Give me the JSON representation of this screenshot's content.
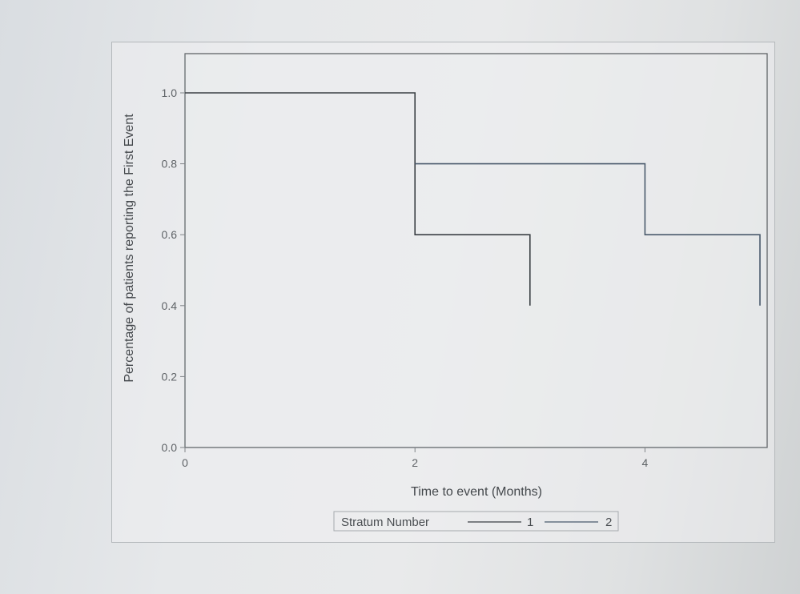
{
  "chart_data": {
    "type": "line",
    "step": true,
    "xlabel": "Time to event (Months)",
    "ylabel": "Percentage of patients reporting the First Event",
    "xlim": [
      0,
      5
    ],
    "ylim": [
      0,
      1.0
    ],
    "x_ticks": [
      "0",
      "2",
      "4"
    ],
    "y_ticks": [
      "0.0",
      "0.2",
      "0.4",
      "0.6",
      "0.8",
      "1.0"
    ],
    "grid": false,
    "legend": {
      "title": "Stratum Number",
      "placement": "bottom-center",
      "entries": [
        "1",
        "2"
      ]
    },
    "series": [
      {
        "name": "1",
        "color": "#3a3f44",
        "points": [
          [
            0,
            1.0
          ],
          [
            2,
            1.0
          ],
          [
            2,
            0.6
          ],
          [
            3,
            0.6
          ],
          [
            3,
            0.4
          ]
        ]
      },
      {
        "name": "2",
        "color": "#4a5a6c",
        "points": [
          [
            2,
            0.8
          ],
          [
            4,
            0.8
          ],
          [
            4,
            0.6
          ],
          [
            5,
            0.6
          ],
          [
            5,
            0.4
          ]
        ]
      }
    ]
  }
}
